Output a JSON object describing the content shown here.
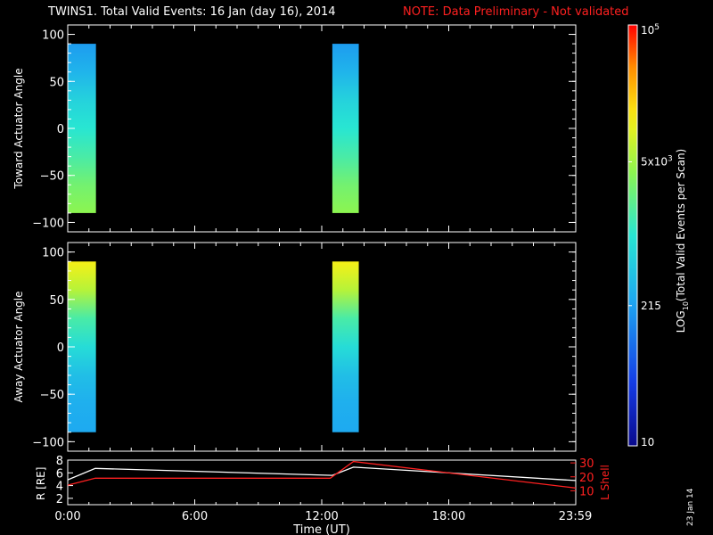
{
  "header": {
    "title": "TWINS1. Total Valid Events: 16 Jan (day  16), 2014",
    "note": "NOTE: Data Preliminary - Not validated",
    "note_color": "#ff2020"
  },
  "stamp": "23 Jan 14",
  "colorbar": {
    "label": "LOG10(Total Valid Events per Scan)",
    "tick_labels": [
      "10",
      "215",
      "5x10^3",
      "10^5"
    ],
    "tick_values": [
      10,
      215,
      5000,
      100000
    ],
    "scale": "log",
    "range": [
      10,
      100000
    ]
  },
  "chart_data": [
    {
      "type": "heatmap",
      "ylabel": "Toward Actuator Angle",
      "ylim": [
        -110,
        110
      ],
      "yticks": [
        100,
        50,
        0,
        -50,
        -100
      ],
      "xlim_hours": [
        0,
        24
      ],
      "data_blocks": [
        {
          "x_start": "00:00",
          "x_end": "01:20",
          "angle_range": [
            -90,
            90
          ],
          "log_counts_by_angle": [
            [
              90,
              2.3
            ],
            [
              60,
              2.5
            ],
            [
              30,
              2.8
            ],
            [
              0,
              3.0
            ],
            [
              -30,
              3.2
            ],
            [
              -60,
              3.45
            ],
            [
              -90,
              3.6
            ]
          ]
        },
        {
          "x_start": "12:30",
          "x_end": "13:45",
          "angle_range": [
            -90,
            90
          ],
          "log_counts_by_angle": [
            [
              90,
              2.3
            ],
            [
              60,
              2.5
            ],
            [
              30,
              2.8
            ],
            [
              0,
              3.0
            ],
            [
              -30,
              3.2
            ],
            [
              -60,
              3.45
            ],
            [
              -90,
              3.6
            ]
          ]
        }
      ]
    },
    {
      "type": "heatmap",
      "ylabel": "Away Actuator Angle",
      "ylim": [
        -110,
        110
      ],
      "yticks": [
        100,
        50,
        0,
        -50,
        -100
      ],
      "xlim_hours": [
        0,
        24
      ],
      "data_blocks": [
        {
          "x_start": "00:00",
          "x_end": "01:20",
          "angle_range": [
            -90,
            90
          ],
          "log_counts_by_angle": [
            [
              90,
              4.1
            ],
            [
              60,
              3.8
            ],
            [
              30,
              3.2
            ],
            [
              0,
              2.9
            ],
            [
              -30,
              2.6
            ],
            [
              -60,
              2.45
            ],
            [
              -90,
              2.4
            ]
          ]
        },
        {
          "x_start": "12:30",
          "x_end": "13:45",
          "angle_range": [
            -90,
            90
          ],
          "log_counts_by_angle": [
            [
              90,
              4.1
            ],
            [
              60,
              3.8
            ],
            [
              30,
              3.2
            ],
            [
              0,
              2.9
            ],
            [
              -30,
              2.6
            ],
            [
              -60,
              2.45
            ],
            [
              -90,
              2.4
            ]
          ]
        }
      ]
    },
    {
      "type": "line",
      "ylabel_left": "R [RE]",
      "ylabel_right": "L Shell",
      "xlabel": "Time (UT)",
      "xtick_labels": [
        "0:00",
        "6:00",
        "12:00",
        "18:00",
        "23:59"
      ],
      "xtick_hours": [
        0,
        6,
        12,
        18,
        23.98
      ],
      "ylim_left": [
        1,
        8
      ],
      "yticks_left": [
        2,
        4,
        6,
        8
      ],
      "ylim_right": [
        0,
        32
      ],
      "yticks_right": [
        10,
        20,
        30
      ],
      "series": [
        {
          "axis": "left",
          "color": "#ffffff",
          "x": [
            0,
            1.3,
            12.5,
            13.5,
            24
          ],
          "y": [
            4.9,
            6.7,
            5.6,
            6.9,
            4.8
          ]
        },
        {
          "axis": "right",
          "color": "#ff2020",
          "x": [
            0,
            1.3,
            12.4,
            13.5,
            24
          ],
          "y": [
            14,
            19,
            19,
            31,
            12
          ]
        }
      ]
    }
  ]
}
